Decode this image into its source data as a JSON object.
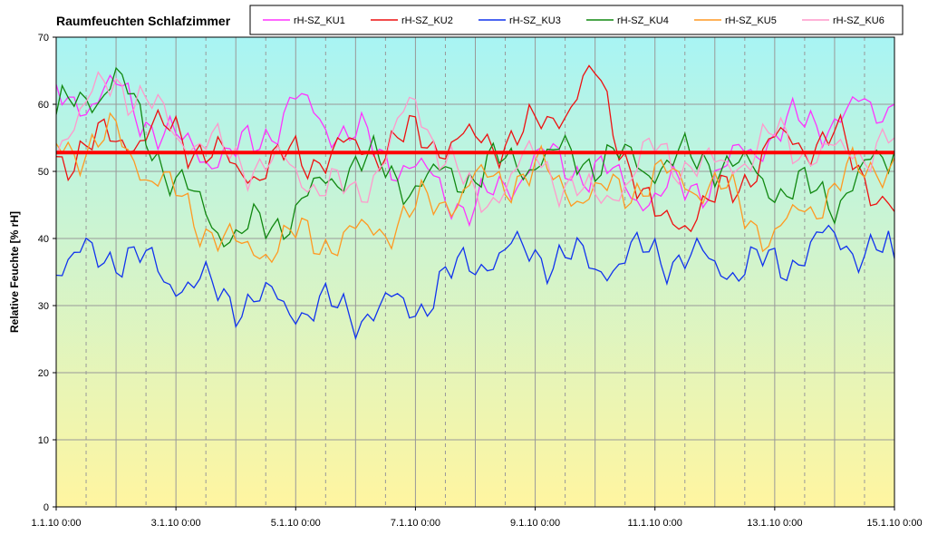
{
  "chart_data": {
    "type": "line",
    "title": "Raumfeuchten Schlafzimmer",
    "ylabel": "Relative Feuchte [% rH]",
    "xlabel": "",
    "ylim": [
      0,
      70
    ],
    "yticks": [
      0,
      10,
      20,
      30,
      40,
      50,
      60,
      70
    ],
    "xlim": [
      "2010-01-01",
      "2010-01-15"
    ],
    "xtick_labels": [
      "1.1.10 0:00",
      "3.1.10 0:00",
      "5.1.10 0:00",
      "7.1.10 0:00",
      "9.1.10 0:00",
      "11.1.10 0:00",
      "13.1.10 0:00",
      "15.1.10 0:00"
    ],
    "grid": true,
    "legend_position": "top",
    "background_gradient": [
      "#a8f4f4",
      "#fff5a0"
    ],
    "reference_line": {
      "y": 52.8,
      "color": "#ff0000"
    },
    "x_dates": [
      "2010-01-01",
      "2010-01-02",
      "2010-01-03",
      "2010-01-04",
      "2010-01-05",
      "2010-01-06",
      "2010-01-07",
      "2010-01-08",
      "2010-01-09",
      "2010-01-10",
      "2010-01-11",
      "2010-01-12",
      "2010-01-13",
      "2010-01-14",
      "2010-01-15"
    ],
    "series": [
      {
        "name": "rH-SZ_KU1",
        "color": "#ff33ff",
        "values": [
          60,
          62,
          54,
          52,
          60,
          55,
          50,
          44,
          52,
          50,
          46,
          49,
          56,
          58,
          60
        ]
      },
      {
        "name": "rH-SZ_KU2",
        "color": "#ee1111",
        "values": [
          52,
          55,
          56,
          50,
          52,
          53,
          55,
          54,
          56,
          64,
          42,
          45,
          54,
          55,
          44
        ]
      },
      {
        "name": "rH-SZ_KU3",
        "color": "#1133ee",
        "values": [
          36,
          38,
          34,
          31,
          30,
          29,
          30,
          37,
          38,
          36,
          38,
          36,
          36,
          40,
          37
        ]
      },
      {
        "name": "rH-SZ_KU4",
        "color": "#118811",
        "values": [
          58,
          64,
          48,
          40,
          44,
          52,
          48,
          50,
          52,
          52,
          51,
          52,
          48,
          46,
          53
        ]
      },
      {
        "name": "rH-SZ_KU5",
        "color": "#ff9922",
        "values": [
          53,
          55,
          46,
          38,
          40,
          40,
          44,
          48,
          50,
          46,
          49,
          48,
          40,
          48,
          52
        ]
      },
      {
        "name": "rH-SZ_KU6",
        "color": "#ff99cc",
        "values": [
          55,
          64,
          56,
          52,
          50,
          46,
          60,
          45,
          52,
          45,
          53,
          50,
          55,
          52,
          55
        ]
      }
    ]
  }
}
